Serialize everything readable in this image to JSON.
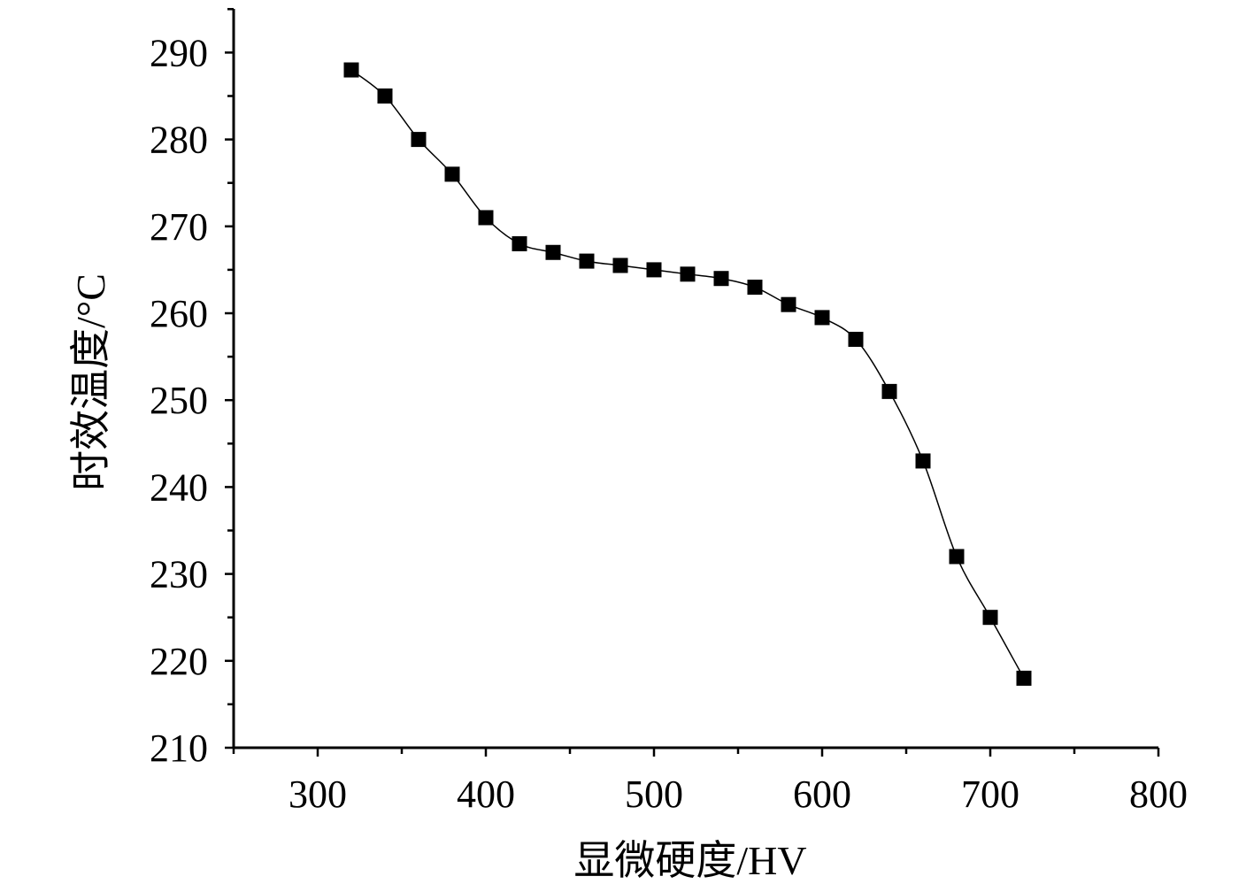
{
  "chart_data": {
    "type": "line",
    "xlabel": "显微硬度/HV",
    "ylabel": "时效温度/°C",
    "xlim": [
      250,
      800
    ],
    "ylim": [
      210,
      295
    ],
    "xticks": [
      300,
      400,
      500,
      600,
      700,
      800
    ],
    "yticks": [
      210,
      220,
      230,
      240,
      250,
      260,
      270,
      280,
      290
    ],
    "grid": false,
    "legend": "none",
    "marker": "square",
    "line_color": "#000000",
    "marker_color": "#000000",
    "series": [
      {
        "x": [
          320,
          340,
          360,
          380,
          400,
          420,
          440,
          460,
          480,
          500,
          520,
          540,
          560,
          580,
          600,
          620,
          640,
          660,
          680,
          700,
          720
        ],
        "y": [
          288,
          285,
          280,
          276,
          271,
          268,
          267,
          266,
          265.5,
          265,
          264.5,
          264,
          263,
          261,
          259.5,
          257,
          251,
          243,
          232,
          225,
          218
        ]
      }
    ]
  }
}
